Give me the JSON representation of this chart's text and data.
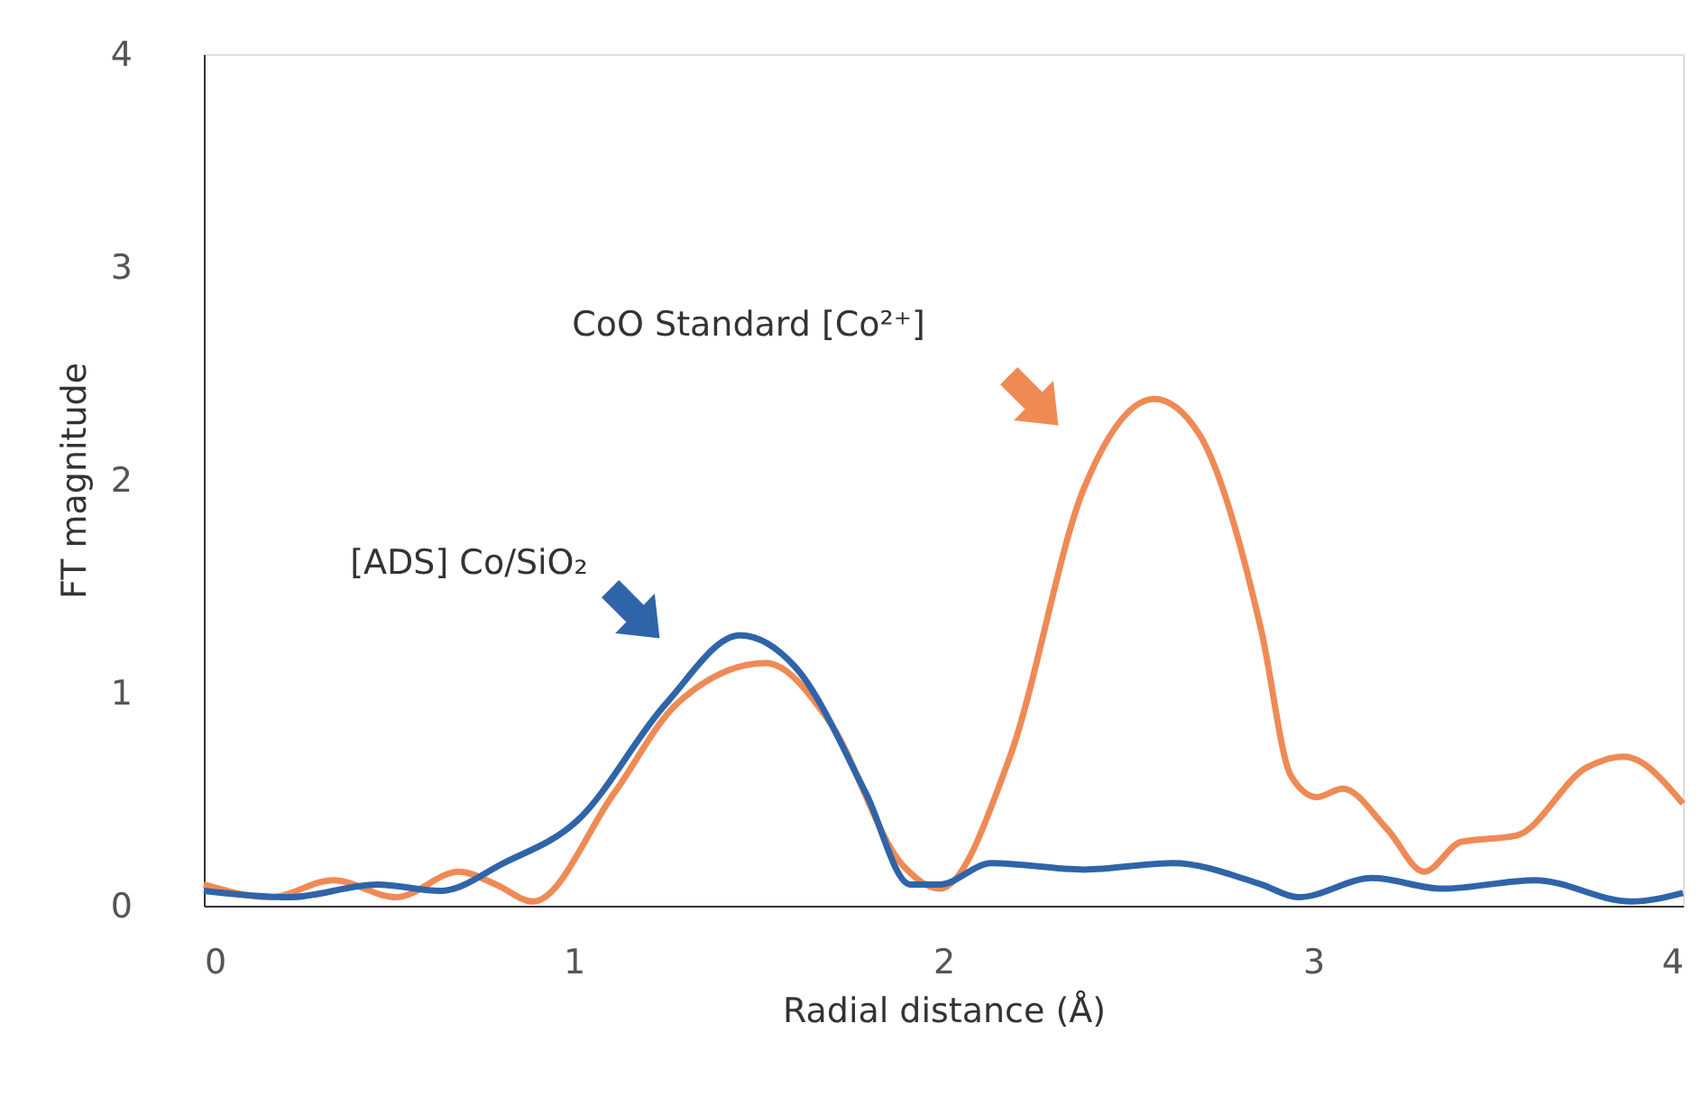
{
  "chart_data": {
    "type": "line",
    "xlabel": "Radial distance (Å)",
    "ylabel": "FT magnitude",
    "xlim": [
      0,
      4
    ],
    "xticks": [
      0,
      1,
      2,
      3,
      4
    ],
    "ylim": [
      0,
      4
    ],
    "yticks": [
      0,
      1,
      2,
      3,
      4
    ],
    "grid": false,
    "marker": "none",
    "line_style": "solid",
    "series": [
      {
        "color": "#ef8a55",
        "x": [
          0,
          0.18,
          0.35,
          0.52,
          0.69,
          0.79,
          0.89,
          1.11,
          1.28,
          1.52,
          1.69,
          1.89,
          1.99,
          2.18,
          2.38,
          2.57,
          2.69,
          2.86,
          2.94,
          3.01,
          3.08,
          3.2,
          3.3,
          3.4,
          3.55,
          3.74,
          3.84,
          4.0
        ],
        "values": [
          0.1,
          0.04,
          0.12,
          0.04,
          0.16,
          0.1,
          0.02,
          0.53,
          0.95,
          1.14,
          0.87,
          0.19,
          0.08,
          0.7,
          1.96,
          2.38,
          2.22,
          1.29,
          0.61,
          0.51,
          0.55,
          0.36,
          0.16,
          0.3,
          0.33,
          0.65,
          0.7,
          0.48
        ]
      },
      {
        "color": "#2f64a8",
        "x": [
          0,
          0.23,
          0.47,
          0.64,
          0.81,
          1.01,
          1.25,
          1.45,
          1.6,
          1.79,
          1.91,
          1.99,
          2.13,
          2.38,
          2.62,
          2.86,
          2.96,
          3.16,
          3.35,
          3.6,
          3.86,
          4.0
        ],
        "values": [
          0.07,
          0.04,
          0.1,
          0.07,
          0.2,
          0.4,
          0.95,
          1.27,
          1.12,
          0.53,
          0.1,
          0.1,
          0.2,
          0.17,
          0.2,
          0.1,
          0.04,
          0.13,
          0.08,
          0.12,
          0.02,
          0.06
        ]
      }
    ],
    "annotations": [
      "CoO Standard [Co²⁺]",
      "[ADS] Co/SiO₂"
    ]
  }
}
